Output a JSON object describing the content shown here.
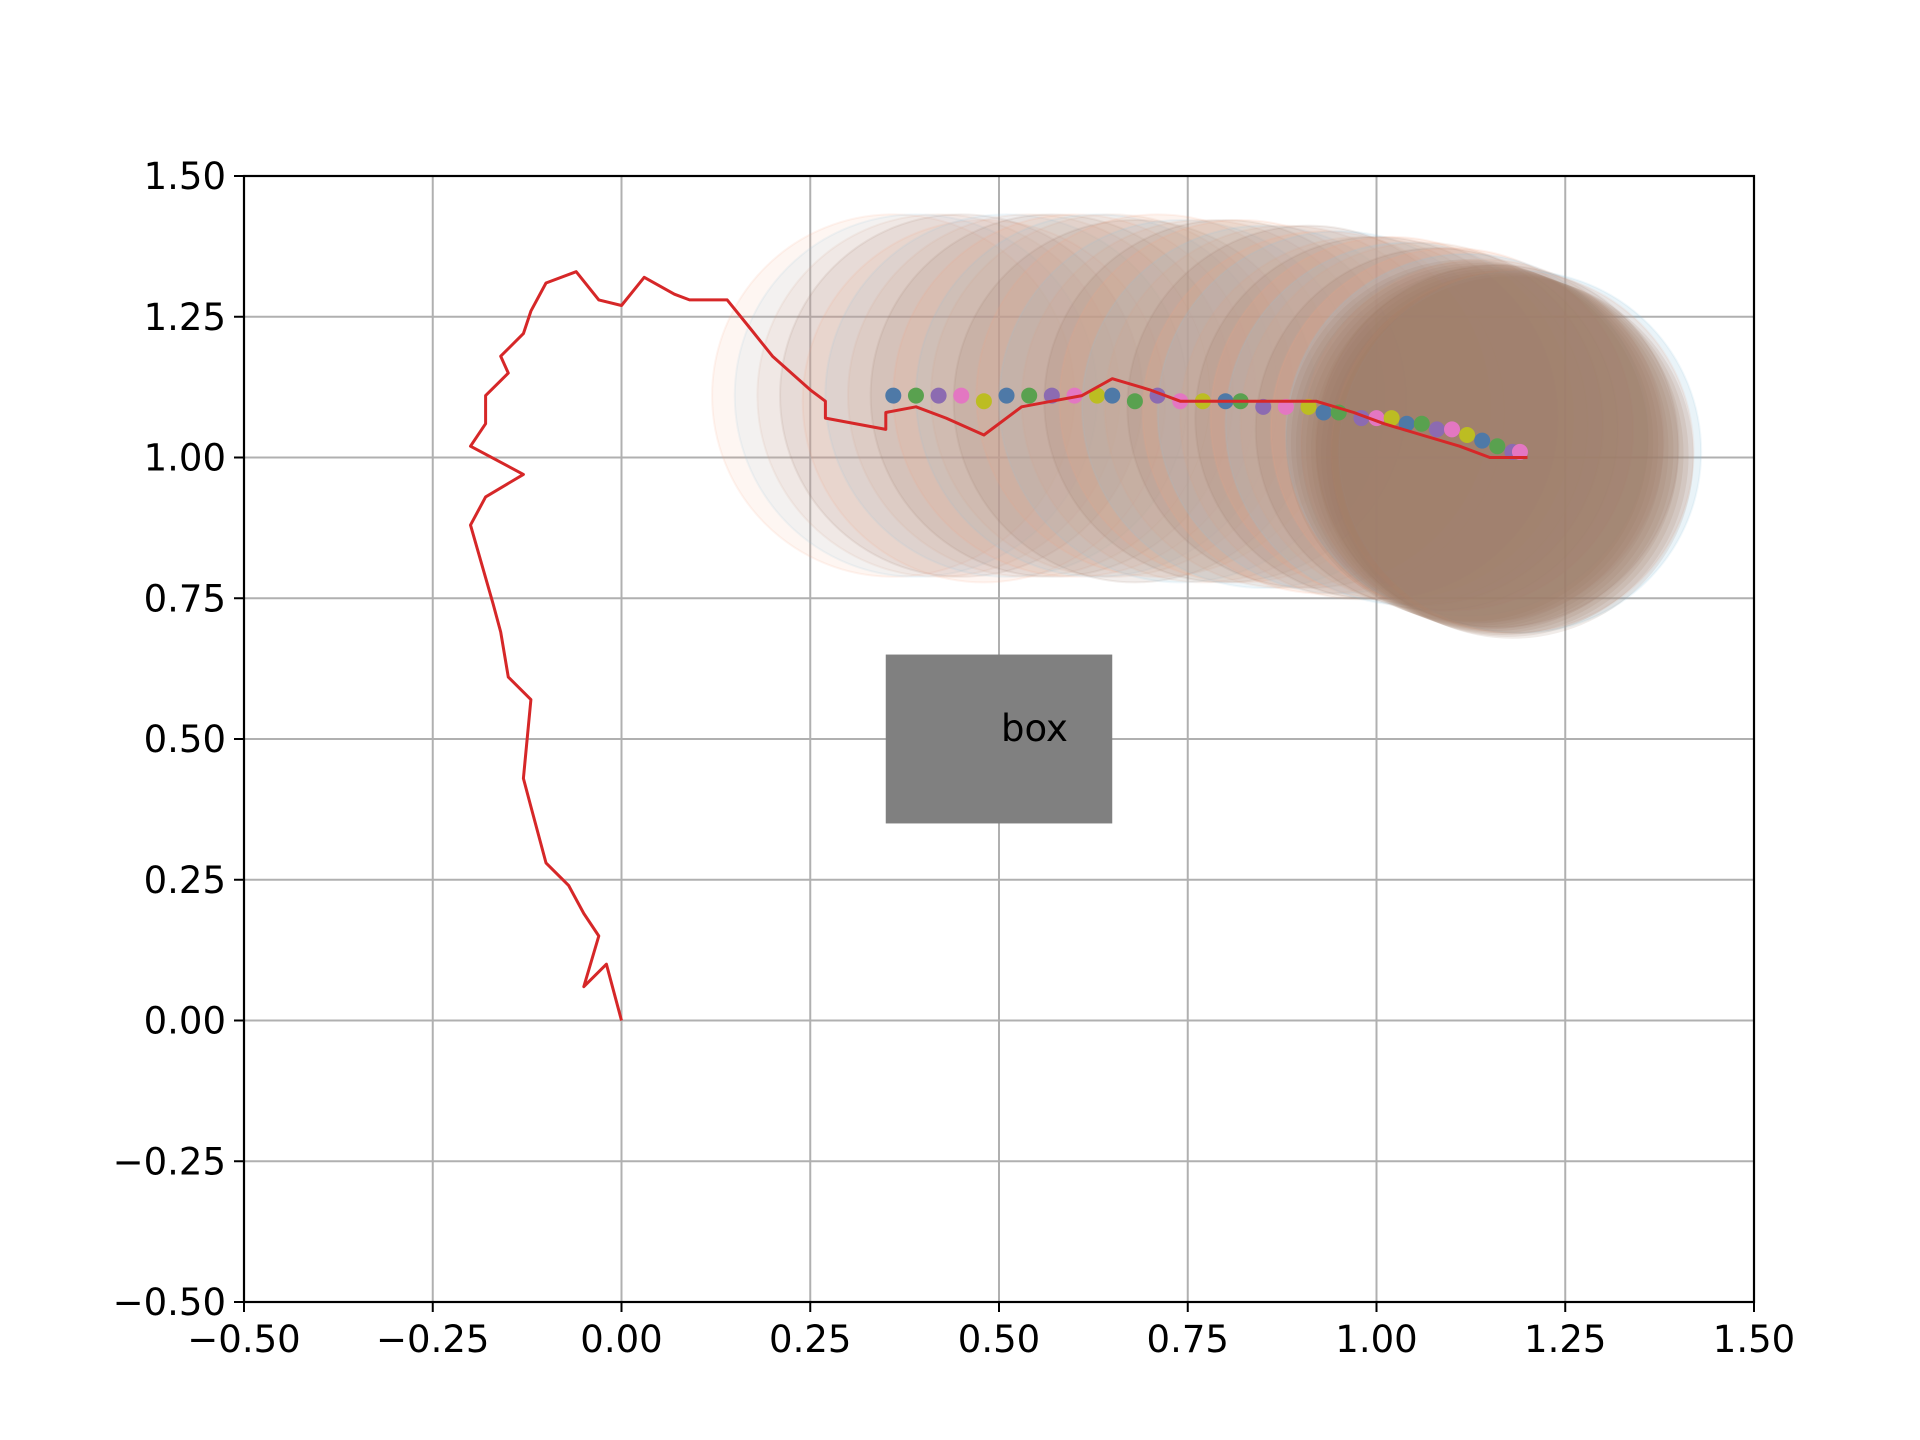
{
  "chart_data": {
    "type": "line",
    "title": "",
    "xlabel": "",
    "ylabel": "",
    "xlim": [
      -0.5,
      1.5
    ],
    "ylim": [
      -0.5,
      1.5
    ],
    "grid": true,
    "xticks": [
      "−0.50",
      "−0.25",
      "0.00",
      "0.25",
      "0.50",
      "0.75",
      "1.00",
      "1.25",
      "1.50"
    ],
    "xtick_values": [
      -0.5,
      -0.25,
      0.0,
      0.25,
      0.5,
      0.75,
      1.0,
      1.25,
      1.5
    ],
    "yticks": [
      "−0.50",
      "−0.25",
      "0.00",
      "0.25",
      "0.50",
      "0.75",
      "1.00",
      "1.25",
      "1.50"
    ],
    "ytick_values": [
      -0.5,
      -0.25,
      0.0,
      0.25,
      0.5,
      0.75,
      1.0,
      1.25,
      1.5
    ],
    "path": {
      "color": "#d62728",
      "x": [
        0.0,
        -0.02,
        -0.05,
        -0.03,
        -0.05,
        -0.07,
        -0.1,
        -0.12,
        -0.13,
        -0.12,
        -0.15,
        -0.16,
        -0.17,
        -0.2,
        -0.18,
        -0.13,
        -0.2,
        -0.18,
        -0.18,
        -0.15,
        -0.16,
        -0.13,
        -0.12,
        -0.1,
        -0.06,
        -0.03,
        0.0,
        0.03,
        0.07,
        0.09,
        0.14,
        0.17,
        0.2,
        0.25,
        0.27,
        0.27,
        0.35,
        0.35,
        0.39,
        0.43,
        0.48,
        0.53,
        0.57,
        0.61,
        0.65,
        0.7,
        0.74,
        0.78,
        0.83,
        0.87,
        0.92,
        0.97,
        1.01,
        1.06,
        1.11,
        1.15,
        1.2
      ],
      "y": [
        0.0,
        0.1,
        0.06,
        0.15,
        0.19,
        0.24,
        0.28,
        0.38,
        0.43,
        0.57,
        0.61,
        0.69,
        0.74,
        0.88,
        0.93,
        0.97,
        1.02,
        1.06,
        1.11,
        1.15,
        1.18,
        1.22,
        1.26,
        1.31,
        1.33,
        1.28,
        1.27,
        1.32,
        1.29,
        1.28,
        1.28,
        1.23,
        1.18,
        1.12,
        1.1,
        1.07,
        1.05,
        1.08,
        1.09,
        1.07,
        1.04,
        1.09,
        1.1,
        1.11,
        1.14,
        1.12,
        1.1,
        1.1,
        1.1,
        1.1,
        1.1,
        1.08,
        1.06,
        1.04,
        1.02,
        1.0,
        1.0
      ]
    },
    "dots": {
      "colors": [
        "#4e79a7",
        "#59a14f",
        "#8c6bb1",
        "#e377c2",
        "#bcbd22"
      ],
      "x": [
        0.36,
        0.39,
        0.42,
        0.45,
        0.48,
        0.51,
        0.54,
        0.57,
        0.6,
        0.63,
        0.65,
        0.68,
        0.71,
        0.74,
        0.77,
        0.8,
        0.82,
        0.85,
        0.88,
        0.91,
        0.93,
        0.95,
        0.98,
        1.0,
        1.02,
        1.04,
        1.06,
        1.08,
        1.1,
        1.12,
        1.14,
        1.16,
        1.18,
        1.19
      ],
      "y": [
        1.11,
        1.11,
        1.11,
        1.11,
        1.1,
        1.11,
        1.11,
        1.11,
        1.11,
        1.11,
        1.11,
        1.1,
        1.11,
        1.1,
        1.1,
        1.1,
        1.1,
        1.09,
        1.09,
        1.09,
        1.08,
        1.08,
        1.07,
        1.07,
        1.07,
        1.06,
        1.06,
        1.05,
        1.05,
        1.04,
        1.03,
        1.02,
        1.01,
        1.01
      ]
    },
    "halos": {
      "radius": 0.24,
      "colors": [
        "#f4a582",
        "#92c5de",
        "#d9a58a",
        "#a07a6a"
      ]
    },
    "box": {
      "label": "box",
      "x0": 0.35,
      "x1": 0.65,
      "y0": 0.35,
      "y1": 0.65,
      "color": "#808080"
    }
  }
}
